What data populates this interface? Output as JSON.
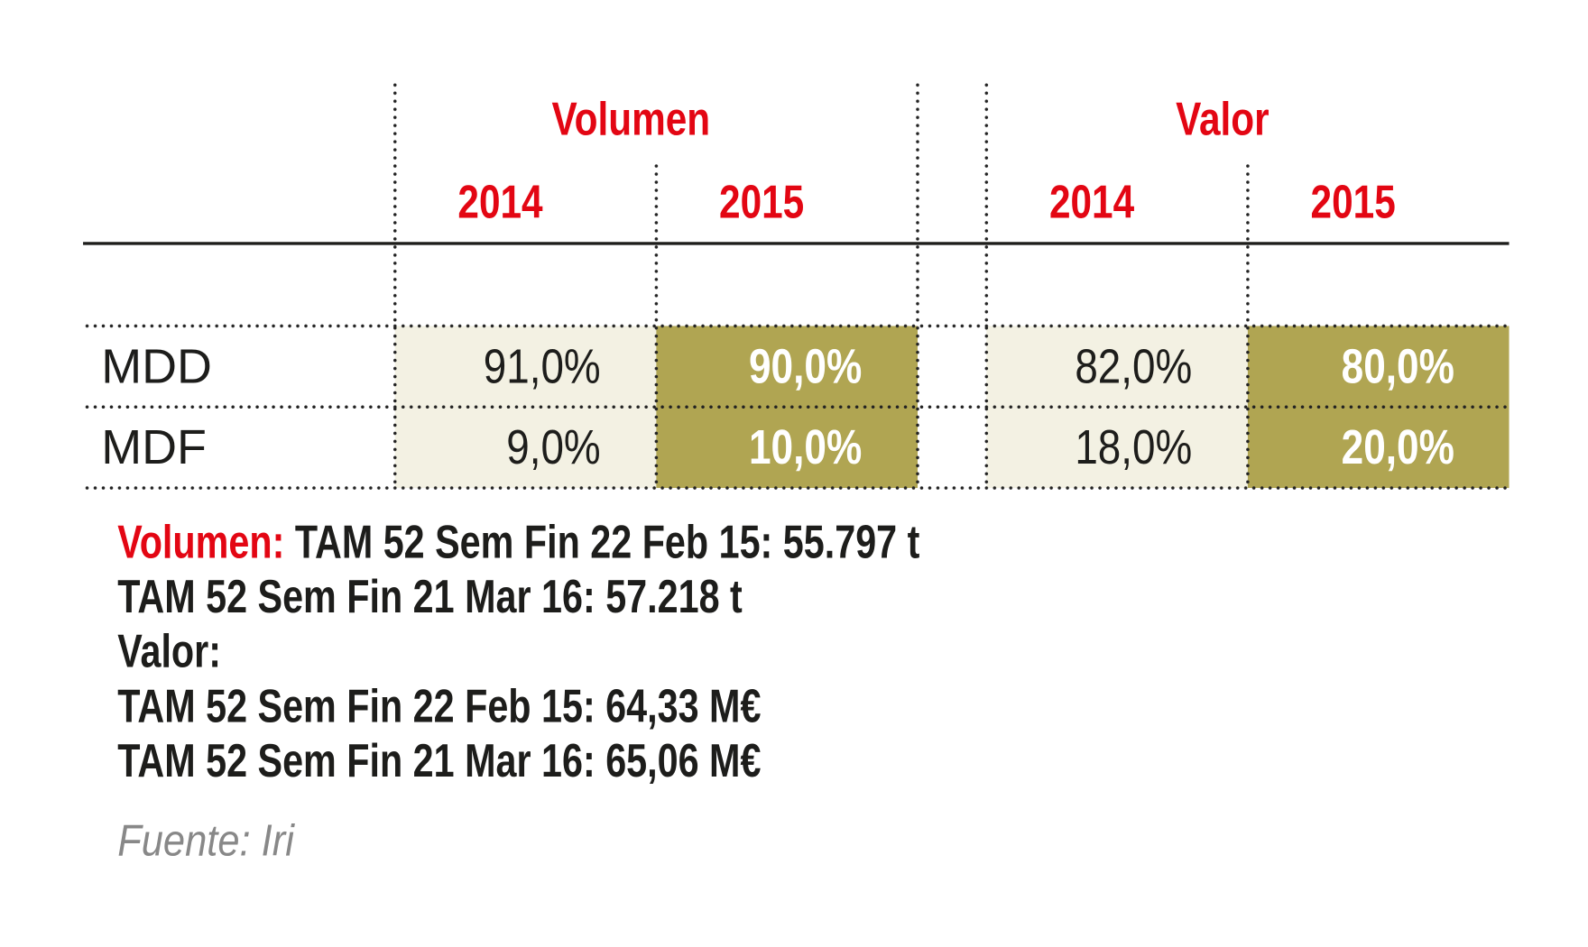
{
  "table": {
    "groups": [
      {
        "label": "Volumen",
        "years": [
          "2014",
          "2015"
        ]
      },
      {
        "label": "Valor",
        "years": [
          "2014",
          "2015"
        ]
      }
    ],
    "rows": [
      {
        "label": "MDD",
        "values": [
          "91,0%",
          "90,0%",
          "82,0%",
          "80,0%"
        ]
      },
      {
        "label": "MDF",
        "values": [
          "9,0%",
          "10,0%",
          "18,0%",
          "20,0%"
        ]
      }
    ]
  },
  "notes": {
    "volumen_label": "Volumen:",
    "volumen_line1": "TAM 52 Sem Fin 22 Feb 15: 55.797 t",
    "volumen_line2": "TAM 52 Sem Fin 21 Mar 16: 57.218 t",
    "valor_label": "Valor:",
    "valor_line1": "TAM 52 Sem Fin 22 Feb 15: 64,33 M€",
    "valor_line2": "TAM 52 Sem Fin 21 Mar 16: 65,06 M€"
  },
  "source": "Fuente: Iri",
  "colors": {
    "accent": "#e30613",
    "highlight": "#b0a552",
    "light": "#f3f1e3"
  }
}
